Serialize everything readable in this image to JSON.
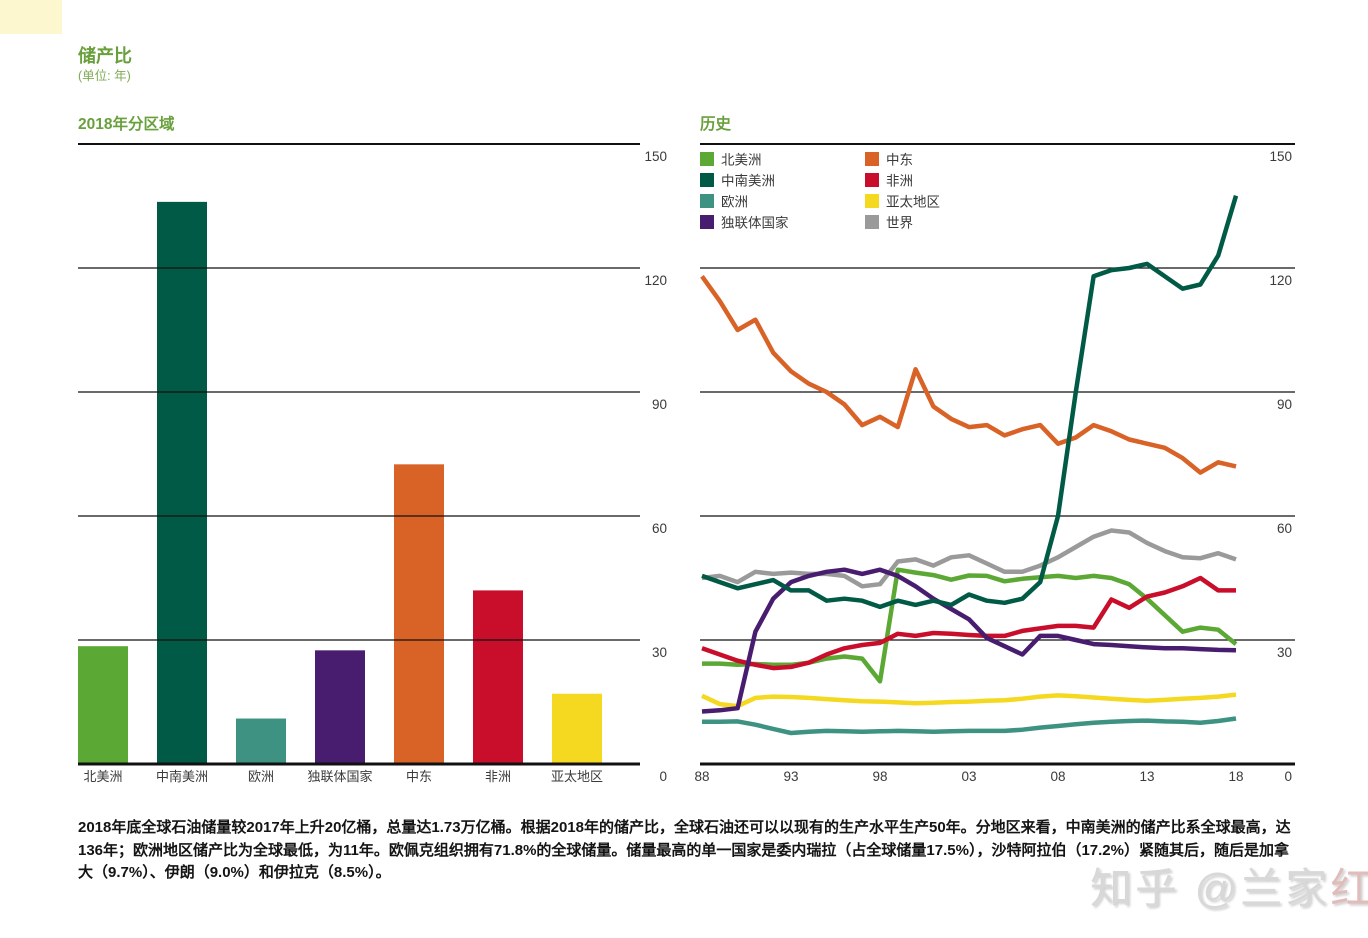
{
  "header": {
    "title": "储产比",
    "subtitle": "(单位: 年)"
  },
  "caption": "2018年底全球石油储量较2017年上升20亿桶，总量达1.73万亿桶。根据2018年的储产比，全球石油还可以以现有的生产水平生产50年。分地区来看，中南美洲的储产比系全球最高，达136年；欧洲地区储产比为全球最低，为11年。欧佩克组织拥有71.8%的全球储量。储量最高的单一国家是委内瑞拉（占全球储量17.5%），沙特阿拉伯（17.2%）紧随其后，随后是加拿大（9.7%）、伊朗（9.0%）和伊拉克（8.5%）。",
  "watermark": {
    "prefix": "知乎 @兰家",
    "suffix": "红薯"
  },
  "colors": {
    "north_america": "#5ca834",
    "south_central_america": "#005a45",
    "europe": "#3d9282",
    "cis": "#481d6f",
    "middle_east": "#d96227",
    "africa": "#c90e2c",
    "asia_pacific": "#f5d820",
    "world": "#9a9a9a",
    "axis": "#111111",
    "tick_label": "#3a3a3a",
    "title_green": "#69a03c"
  },
  "chart_data": [
    {
      "type": "bar",
      "title": "2018年分区域",
      "categories": [
        "北美洲",
        "中南美洲",
        "欧洲",
        "独联体国家",
        "中东",
        "非洲",
        "亚太地区"
      ],
      "values": [
        28.5,
        136,
        11,
        27.5,
        72.5,
        42,
        17
      ],
      "color_keys": [
        "north_america",
        "south_central_america",
        "europe",
        "cis",
        "middle_east",
        "africa",
        "asia_pacific"
      ],
      "ylim": [
        0,
        150
      ],
      "yticks": [
        150,
        120,
        90,
        60,
        30,
        0
      ],
      "grid": true,
      "ylabel": "",
      "xlabel": ""
    },
    {
      "type": "line",
      "title": "历史",
      "x_start": 1988,
      "x_end": 2018,
      "xtick_labels": [
        "88",
        "93",
        "98",
        "03",
        "08",
        "13",
        "18"
      ],
      "ylim": [
        0,
        150
      ],
      "yticks": [
        150,
        120,
        90,
        60,
        30,
        0
      ],
      "grid": true,
      "legend_position": "top-left, two columns",
      "series": [
        {
          "name": "北美洲",
          "color_key": "north_america",
          "values": [
            24.3,
            24.3,
            24,
            24.2,
            24,
            24,
            24.5,
            25.5,
            26,
            25.5,
            20,
            47,
            46.3,
            45.7,
            44.6,
            45.6,
            45.5,
            44.2,
            44.8,
            45.2,
            45.5,
            45,
            45.5,
            45,
            43.5,
            40,
            36,
            32,
            33,
            32.5,
            29
          ]
        },
        {
          "name": "中南美洲",
          "color_key": "south_central_america",
          "values": [
            45.5,
            44,
            42.5,
            43.5,
            44.5,
            42,
            42,
            39.5,
            40,
            39.5,
            38,
            39.5,
            38.5,
            39.5,
            38.5,
            41,
            39.5,
            39,
            40,
            44,
            60,
            90,
            118,
            119.5,
            120,
            121,
            118,
            115,
            116,
            123,
            137.5
          ]
        },
        {
          "name": "欧洲",
          "color_key": "europe",
          "values": [
            10.2,
            10.2,
            10.3,
            9.5,
            8.5,
            7.5,
            7.8,
            8,
            7.9,
            7.8,
            7.9,
            8,
            7.9,
            7.8,
            7.9,
            8,
            8,
            8,
            8.3,
            8.8,
            9.2,
            9.6,
            10,
            10.2,
            10.4,
            10.5,
            10.3,
            10.2,
            10,
            10.4,
            11
          ]
        },
        {
          "name": "独联体国家",
          "color_key": "cis",
          "values": [
            12.7,
            13,
            13.5,
            32,
            40,
            44,
            45.5,
            46.5,
            47,
            46,
            47,
            45.5,
            43,
            40,
            37.5,
            35,
            30.5,
            28.5,
            26.5,
            31,
            31,
            30,
            29,
            28.8,
            28.5,
            28.2,
            28,
            28,
            27.8,
            27.6,
            27.5
          ]
        },
        {
          "name": "中东",
          "color_key": "middle_east",
          "values": [
            118,
            112,
            105,
            107.5,
            99.5,
            95,
            92,
            90,
            87,
            82,
            84,
            81.5,
            95.5,
            86.5,
            83.5,
            81.5,
            82,
            79.5,
            81,
            82,
            77.5,
            79,
            82,
            80.5,
            78.5,
            77.5,
            76.5,
            74,
            70.5,
            73,
            72
          ]
        },
        {
          "name": "非洲",
          "color_key": "africa",
          "values": [
            28,
            26.5,
            25,
            24,
            23.2,
            23.5,
            24.5,
            26.5,
            28,
            28.8,
            29.3,
            31.5,
            31,
            31.7,
            31.5,
            31.2,
            31,
            31,
            32.2,
            32.8,
            33.4,
            33.4,
            33,
            39.8,
            37.8,
            40.5,
            41.5,
            43,
            45,
            42,
            42
          ]
        },
        {
          "name": "亚太地区",
          "color_key": "asia_pacific",
          "values": [
            16.5,
            14.5,
            14,
            16,
            16.3,
            16.2,
            16,
            15.7,
            15.4,
            15.2,
            15.1,
            14.9,
            14.7,
            14.8,
            15,
            15.1,
            15.3,
            15.4,
            15.8,
            16.3,
            16.6,
            16.4,
            16.1,
            15.8,
            15.5,
            15.3,
            15.5,
            15.8,
            16,
            16.3,
            16.8
          ]
        },
        {
          "name": "世界",
          "color_key": "world",
          "values": [
            45,
            45.5,
            44,
            46.5,
            46,
            46.3,
            46,
            46,
            45.5,
            43,
            43.5,
            49,
            49.5,
            48,
            50,
            50.5,
            48.5,
            46.5,
            46.5,
            48,
            50,
            52.5,
            55,
            56.5,
            56,
            53.5,
            51.5,
            50,
            49.8,
            51,
            49.5
          ]
        }
      ]
    }
  ]
}
